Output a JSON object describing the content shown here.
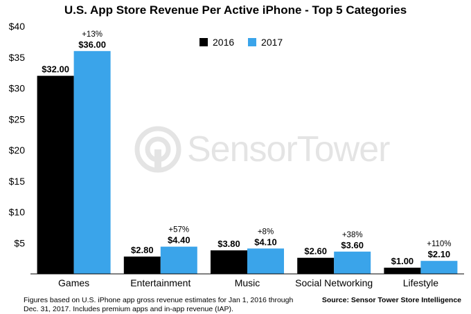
{
  "chart_data": {
    "type": "bar",
    "title": "U.S. App Store Revenue Per Active iPhone - Top 5 Categories",
    "categories": [
      "Games",
      "Entertainment",
      "Music",
      "Social Networking",
      "Lifestyle"
    ],
    "series": [
      {
        "name": "2016",
        "color": "#000000",
        "values": [
          32.0,
          2.8,
          3.8,
          2.6,
          1.0
        ],
        "labels": [
          "$32.00",
          "$2.80",
          "$3.80",
          "$2.60",
          "$1.00"
        ]
      },
      {
        "name": "2017",
        "color": "#3aa4ea",
        "values": [
          36.0,
          4.4,
          4.1,
          3.6,
          2.1
        ],
        "labels": [
          "$36.00",
          "$4.40",
          "$4.10",
          "$3.60",
          "$2.10"
        ]
      }
    ],
    "growth_labels": [
      "+13%",
      "+57%",
      "+8%",
      "+38%",
      "+110%"
    ],
    "y_ticks": [
      "$5",
      "$10",
      "$15",
      "$20",
      "$25",
      "$30",
      "$35",
      "$40"
    ],
    "y_tick_values": [
      5,
      10,
      15,
      20,
      25,
      30,
      35,
      40
    ],
    "ylim": [
      0,
      40
    ],
    "legend_position": "top-center",
    "grid": false
  },
  "footnote": "Figures based on U.S. iPhone app gross revenue estimates for Jan 1, 2016 through Dec. 31, 2017. Includes premium apps and in-app revenue (IAP).",
  "source": "Source: Sensor Tower Store Intelligence",
  "watermark": {
    "text": "SensorTower"
  }
}
